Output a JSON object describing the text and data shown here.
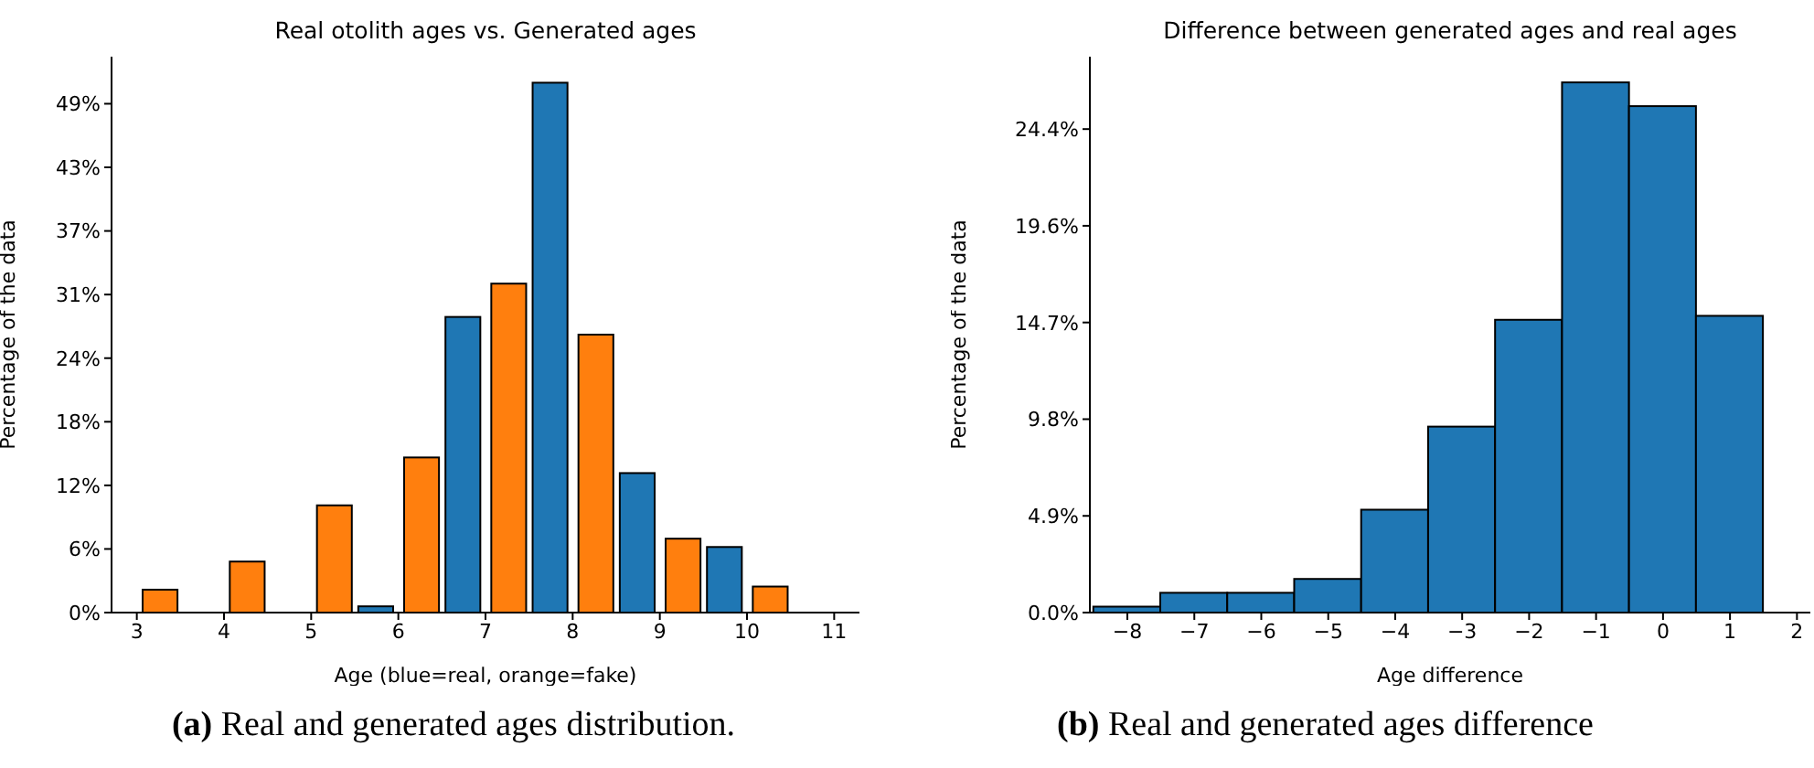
{
  "chart_data": [
    {
      "type": "bar",
      "title": "Real otolith ages vs. Generated ages",
      "xlabel": "Age (blue=real, orange=fake)",
      "ylabel": "Percentage of the data",
      "x": [
        3,
        4,
        5,
        6,
        7,
        8,
        9,
        10
      ],
      "series": [
        {
          "color": "#1f77b4",
          "values": [
            0,
            0,
            0,
            0.6,
            28.4,
            50.9,
            13.4,
            6.3
          ]
        },
        {
          "color": "#ff7f0e",
          "values": [
            2.2,
            4.9,
            10.3,
            14.9,
            31.6,
            26.7,
            7.1,
            2.5
          ]
        }
      ],
      "xlim": [
        2.71,
        11.29
      ],
      "xticks": [
        3,
        4,
        5,
        6,
        7,
        8,
        9,
        10,
        11
      ],
      "ylim": [
        0,
        53.4
      ],
      "yticks": [
        {
          "value": 0,
          "label": "0%"
        },
        {
          "value": 6.11,
          "label": "6%"
        },
        {
          "value": 12.22,
          "label": "12%"
        },
        {
          "value": 18.33,
          "label": "18%"
        },
        {
          "value": 24.44,
          "label": "24%"
        },
        {
          "value": 30.55,
          "label": "31%"
        },
        {
          "value": 36.66,
          "label": "37%"
        },
        {
          "value": 42.77,
          "label": "43%"
        },
        {
          "value": 48.88,
          "label": "49%"
        }
      ],
      "annotations": [
        "(a) Real and generated ages distribution."
      ]
    },
    {
      "type": "histogram",
      "title": "Difference between generated ages and real ages",
      "xlabel": "Age difference",
      "ylabel": "Percentage of the data",
      "color": "#1f77b4",
      "bins": [
        -8.5,
        -7.5,
        -6.5,
        -5.5,
        -4.5,
        -3.5,
        -2.5,
        -1.5,
        -0.5,
        0.5,
        1.5
      ],
      "values": [
        0.3,
        1.0,
        1.0,
        1.7,
        5.2,
        9.4,
        14.8,
        26.8,
        25.6,
        15.0
      ],
      "xlim": [
        -8.56,
        2.2
      ],
      "xticks": [
        -8,
        -7,
        -6,
        -5,
        -4,
        -3,
        -2,
        -1,
        0,
        1,
        2
      ],
      "ylim": [
        0,
        28.1
      ],
      "yticks": [
        {
          "value": 0,
          "label": "0.0%"
        },
        {
          "value": 4.888,
          "label": "4.9%"
        },
        {
          "value": 9.776,
          "label": "9.8%"
        },
        {
          "value": 14.664,
          "label": "14.7%"
        },
        {
          "value": 19.552,
          "label": "19.6%"
        },
        {
          "value": 24.44,
          "label": "24.4%"
        }
      ],
      "annotations": [
        "(b) Real and generated ages difference"
      ]
    }
  ]
}
